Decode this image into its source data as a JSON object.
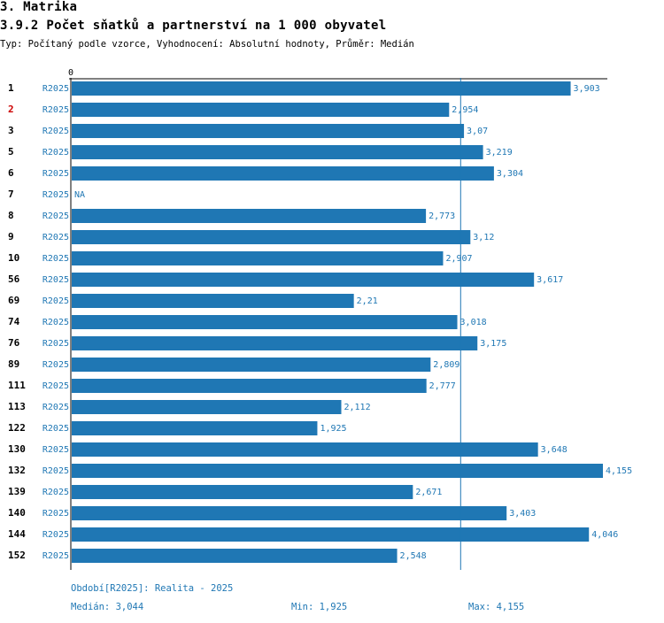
{
  "header": {
    "section": "3. Matrika",
    "title": "3.9.2 Počet sňatků a partnerství na 1 000 obyvatel",
    "subtitle": "Typ: Počítaný podle vzorce, Vyhodnocení: Absolutní hodnoty, Průměr: Medián"
  },
  "colors": {
    "bar": "#1f77b4",
    "highlight_label": "#cc0000",
    "text": "#000000"
  },
  "chart_data": {
    "type": "bar",
    "orientation": "horizontal",
    "axis_zero_label": "0",
    "xlim": [
      0,
      4.155
    ],
    "median_line": 3.044,
    "categories": [
      "1",
      "2",
      "3",
      "5",
      "6",
      "7",
      "8",
      "9",
      "10",
      "56",
      "69",
      "74",
      "76",
      "89",
      "111",
      "113",
      "122",
      "130",
      "132",
      "139",
      "140",
      "144",
      "152"
    ],
    "highlighted": [
      "2"
    ],
    "period_labels": [
      "R2025",
      "R2025",
      "R2025",
      "R2025",
      "R2025",
      "R2025",
      "R2025",
      "R2025",
      "R2025",
      "R2025",
      "R2025",
      "R2025",
      "R2025",
      "R2025",
      "R2025",
      "R2025",
      "R2025",
      "R2025",
      "R2025",
      "R2025",
      "R2025",
      "R2025",
      "R2025"
    ],
    "values": [
      3.903,
      2.954,
      3.07,
      3.219,
      3.304,
      null,
      2.773,
      3.12,
      2.907,
      3.617,
      2.21,
      3.018,
      3.175,
      2.809,
      2.777,
      2.112,
      1.925,
      3.648,
      4.155,
      2.671,
      3.403,
      4.046,
      2.548
    ],
    "value_labels": [
      "3,903",
      "2,954",
      "3,07",
      "3,219",
      "3,304",
      "NA",
      "2,773",
      "3,12",
      "2,907",
      "3,617",
      "2,21",
      "3,018",
      "3,175",
      "2,809",
      "2,777",
      "2,112",
      "1,925",
      "3,648",
      "4,155",
      "2,671",
      "3,403",
      "4,046",
      "2,548"
    ]
  },
  "footer": {
    "period": "Období[R2025]: Realita - 2025",
    "median": "Medián: 3,044",
    "min": "Min: 1,925",
    "max": "Max: 4,155"
  }
}
